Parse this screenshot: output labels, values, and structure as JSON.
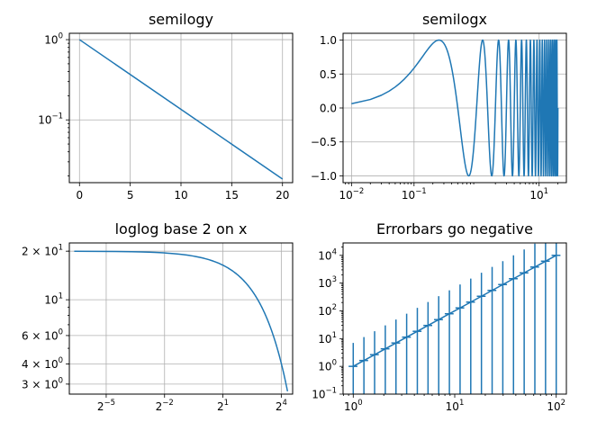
{
  "colors": {
    "series": "#1f77b4",
    "grid": "#b0b0b0",
    "axis": "#000000"
  },
  "chart_data": [
    {
      "type": "line",
      "title": "semilogy",
      "xscale": "linear",
      "yscale": "log",
      "xlim": [
        -1.0,
        21.0
      ],
      "ylim": [
        0.0165,
        1.2
      ],
      "grid": true,
      "xticks": [
        {
          "value": 0,
          "label": "0"
        },
        {
          "value": 5,
          "label": "5"
        },
        {
          "value": 10,
          "label": "10"
        },
        {
          "value": 15,
          "label": "15"
        },
        {
          "value": 20,
          "label": "20"
        }
      ],
      "yticks": [
        {
          "value": 1,
          "base": "10",
          "exp": "0"
        },
        {
          "value": 0.1,
          "base": "10",
          "exp": "−1"
        }
      ],
      "x": [
        0,
        20
      ],
      "y": [
        1.0,
        0.0183
      ]
    },
    {
      "type": "line",
      "title": "semilogx",
      "xscale": "log",
      "yscale": "linear",
      "xlim": [
        0.00733,
        27.3
      ],
      "ylim": [
        -1.1,
        1.1
      ],
      "grid": true,
      "xticks": [
        {
          "value": 0.01,
          "base": "10",
          "exp": "−2"
        },
        {
          "value": 0.1,
          "base": "10",
          "exp": "−1"
        },
        {
          "value": 10,
          "base": "10",
          "exp": "1"
        }
      ],
      "yticks": [
        {
          "value": 1.0,
          "label": "1.0"
        },
        {
          "value": 0.5,
          "label": "0.5"
        },
        {
          "value": 0.0,
          "label": "0.0"
        },
        {
          "value": -0.5,
          "label": "−0.5"
        },
        {
          "value": -1.0,
          "label": "−1.0"
        }
      ],
      "x_range": [
        0.01,
        20.0
      ],
      "y_function": "sin(2*pi*x)"
    },
    {
      "type": "line",
      "title": "loglog base 2 on x",
      "xscale": "log",
      "xscale_base": 2,
      "yscale": "log",
      "xlim": [
        0.0084,
        24.0
      ],
      "ylim": [
        2.6,
        22.5
      ],
      "grid": true,
      "xticks": [
        {
          "value": 0.03125,
          "base": "2",
          "exp": "−5"
        },
        {
          "value": 0.25,
          "base": "2",
          "exp": "−2"
        },
        {
          "value": 2,
          "base": "2",
          "exp": "1"
        },
        {
          "value": 16,
          "base": "2",
          "exp": "4"
        }
      ],
      "yticks": [
        {
          "value": 20,
          "base": "2 × 10",
          "exp": "1"
        },
        {
          "value": 10,
          "base": "10",
          "exp": "1"
        },
        {
          "value": 6,
          "base": "6 × 10",
          "exp": "0"
        },
        {
          "value": 4,
          "base": "4 × 10",
          "exp": "0"
        },
        {
          "value": 3,
          "base": "3 × 10",
          "exp": "0"
        }
      ],
      "x_range": [
        0.01,
        20.0
      ],
      "y_function": "20*exp(-x/10)"
    },
    {
      "type": "line",
      "title": "Errorbars go negative",
      "xscale": "log",
      "yscale": "log",
      "xlim": [
        0.794,
        125.9
      ],
      "ylim": [
        0.1,
        28000
      ],
      "grid": false,
      "xticks": [
        {
          "value": 1,
          "base": "10",
          "exp": "0"
        },
        {
          "value": 10,
          "base": "10",
          "exp": "1"
        },
        {
          "value": 100,
          "base": "10",
          "exp": "2"
        }
      ],
      "yticks": [
        {
          "value": 10000,
          "base": "10",
          "exp": "4"
        },
        {
          "value": 1000,
          "base": "10",
          "exp": "3"
        },
        {
          "value": 100,
          "base": "10",
          "exp": "2"
        },
        {
          "value": 10,
          "base": "10",
          "exp": "1"
        },
        {
          "value": 1,
          "base": "10",
          "exp": "0"
        },
        {
          "value": 0.1,
          "base": "10",
          "exp": "−1"
        }
      ],
      "x": [
        1.0,
        1.1262,
        1.2743,
        1.4384,
        1.6238,
        1.833,
        2.0691,
        2.3357,
        2.6367,
        2.9764,
        3.3598,
        3.7927,
        4.2813,
        4.8329,
        5.4556,
        6.1585,
        6.9519,
        7.8476,
        8.8587,
        10.0,
        11.288,
        12.743,
        14.384,
        16.238,
        18.33,
        20.691,
        23.357,
        26.367,
        29.764,
        33.598,
        37.927,
        42.813,
        48.329,
        54.556,
        61.585,
        69.519,
        78.476,
        88.587,
        100.0
      ],
      "y": [
        1.0,
        1.2743,
        1.6238,
        2.0691,
        2.6367,
        3.3598,
        4.2813,
        5.4556,
        6.9519,
        8.8587,
        11.288,
        14.384,
        18.33,
        23.357,
        29.764,
        37.927,
        48.329,
        61.585,
        78.476,
        100.0,
        127.43,
        162.38,
        206.91,
        263.67,
        335.98,
        428.13,
        545.56,
        695.19,
        885.87,
        1128.8,
        1438.4,
        1833.0,
        2335.7,
        2976.4,
        3792.7,
        4832.9,
        6158.5,
        7847.6,
        10000.0
      ],
      "xerr_fraction": 0.1,
      "yerr_fraction": 0.8,
      "errorbars_every": 2
    }
  ]
}
